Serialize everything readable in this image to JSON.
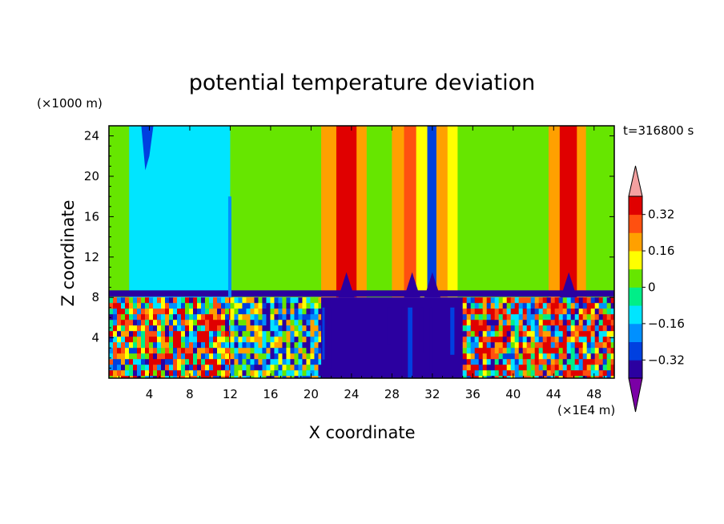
{
  "chart_data": {
    "type": "heatmap",
    "title": "potential temperature deviation",
    "xlabel": "X coordinate",
    "ylabel": "Z coordinate",
    "x_unit": "(×1E4 m)",
    "y_unit": "(×1000 m)",
    "time_label": "t=316800 s",
    "xlim": [
      0,
      50
    ],
    "ylim": [
      0,
      25
    ],
    "x_ticks": [
      4,
      8,
      12,
      16,
      20,
      24,
      28,
      32,
      36,
      40,
      44,
      48
    ],
    "y_ticks": [
      4,
      8,
      12,
      16,
      20,
      24
    ],
    "colorbar": {
      "levels": [
        -0.4,
        -0.32,
        -0.24,
        -0.16,
        -0.08,
        0,
        0.08,
        0.16,
        0.24,
        0.32,
        0.4
      ],
      "tick_labels": [
        "0.32",
        "0.16",
        "0",
        "−0.16",
        "−0.32"
      ],
      "tick_values": [
        0.32,
        0.16,
        0,
        -0.16,
        -0.32
      ],
      "colors": [
        "#7b00a6",
        "#2b00a0",
        "#0040e0",
        "#0090ff",
        "#00e5ff",
        "#00ee88",
        "#66e600",
        "#ffff00",
        "#ffa000",
        "#ff5010",
        "#e00000",
        "#f4a0a0"
      ],
      "extend": "both"
    },
    "regions": {
      "upper_columns": [
        {
          "x0": 0,
          "x1": 2,
          "value": 0.02
        },
        {
          "x0": 2,
          "x1": 12,
          "value": -0.12
        },
        {
          "x0": 12,
          "x1": 19.5,
          "value": 0.02
        },
        {
          "x0": 19.5,
          "x1": 21,
          "value": 0.05
        },
        {
          "x0": 21,
          "x1": 22.5,
          "value": 0.18
        },
        {
          "x0": 22.5,
          "x1": 24.5,
          "value": 0.36
        },
        {
          "x0": 24.5,
          "x1": 25.5,
          "value": 0.2
        },
        {
          "x0": 25.5,
          "x1": 28,
          "value": 0.03
        },
        {
          "x0": 28,
          "x1": 29.2,
          "value": 0.18
        },
        {
          "x0": 29.2,
          "x1": 30.4,
          "value": 0.3
        },
        {
          "x0": 30.4,
          "x1": 31.5,
          "value": 0.1
        },
        {
          "x0": 31.5,
          "x1": 32.4,
          "value": -0.3
        },
        {
          "x0": 32.4,
          "x1": 33.5,
          "value": 0.22
        },
        {
          "x0": 33.5,
          "x1": 34.5,
          "value": 0.1
        },
        {
          "x0": 34.5,
          "x1": 43.5,
          "value": 0.02
        },
        {
          "x0": 43.5,
          "x1": 44.6,
          "value": 0.2
        },
        {
          "x0": 44.6,
          "x1": 46.3,
          "value": 0.36
        },
        {
          "x0": 46.3,
          "x1": 47.2,
          "value": 0.2
        },
        {
          "x0": 47.2,
          "x1": 50,
          "value": 0.03
        }
      ],
      "boundary_layer_top": 8,
      "lower_segments": [
        {
          "x0": 0,
          "x1": 12,
          "value": "turbulent"
        },
        {
          "x0": 12,
          "x1": 21,
          "value": "mixed"
        },
        {
          "x0": 21,
          "x1": 35,
          "value": -0.38
        },
        {
          "x0": 35,
          "x1": 50,
          "value": "turbulent"
        }
      ]
    }
  }
}
